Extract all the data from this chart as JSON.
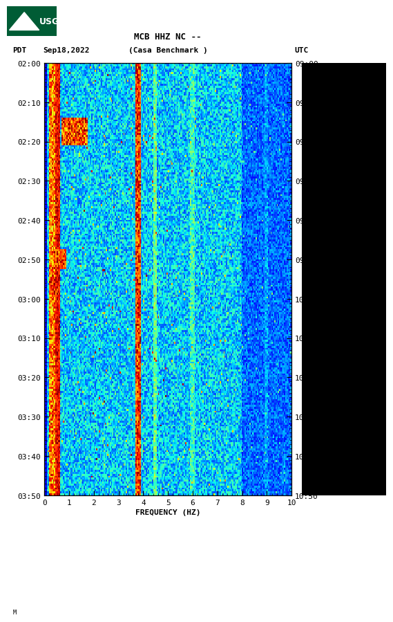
{
  "title_line1": "MCB HHZ NC --",
  "title_line2": "(Casa Benchmark )",
  "date_label": "Sep18,2022",
  "left_tz": "PDT",
  "right_tz": "UTC",
  "time_ticks_left": [
    "02:00",
    "02:10",
    "02:20",
    "02:30",
    "02:40",
    "02:50",
    "03:00",
    "03:10",
    "03:20",
    "03:30",
    "03:40",
    "03:50"
  ],
  "time_ticks_right": [
    "09:00",
    "09:10",
    "09:20",
    "09:30",
    "09:40",
    "09:50",
    "10:00",
    "10:10",
    "10:20",
    "10:30",
    "10:40",
    "10:50"
  ],
  "freq_min": 0,
  "freq_max": 10,
  "freq_ticks": [
    0,
    1,
    2,
    3,
    4,
    5,
    6,
    7,
    8,
    9,
    10
  ],
  "xlabel": "FREQUENCY (HZ)",
  "n_time": 220,
  "n_freq": 200,
  "seed": 42,
  "bg_color": "#ffffff",
  "black_panel_color": "#000000",
  "usgs_green": "#005c35",
  "title_fontsize": 9,
  "label_fontsize": 8,
  "tick_fontsize": 8
}
